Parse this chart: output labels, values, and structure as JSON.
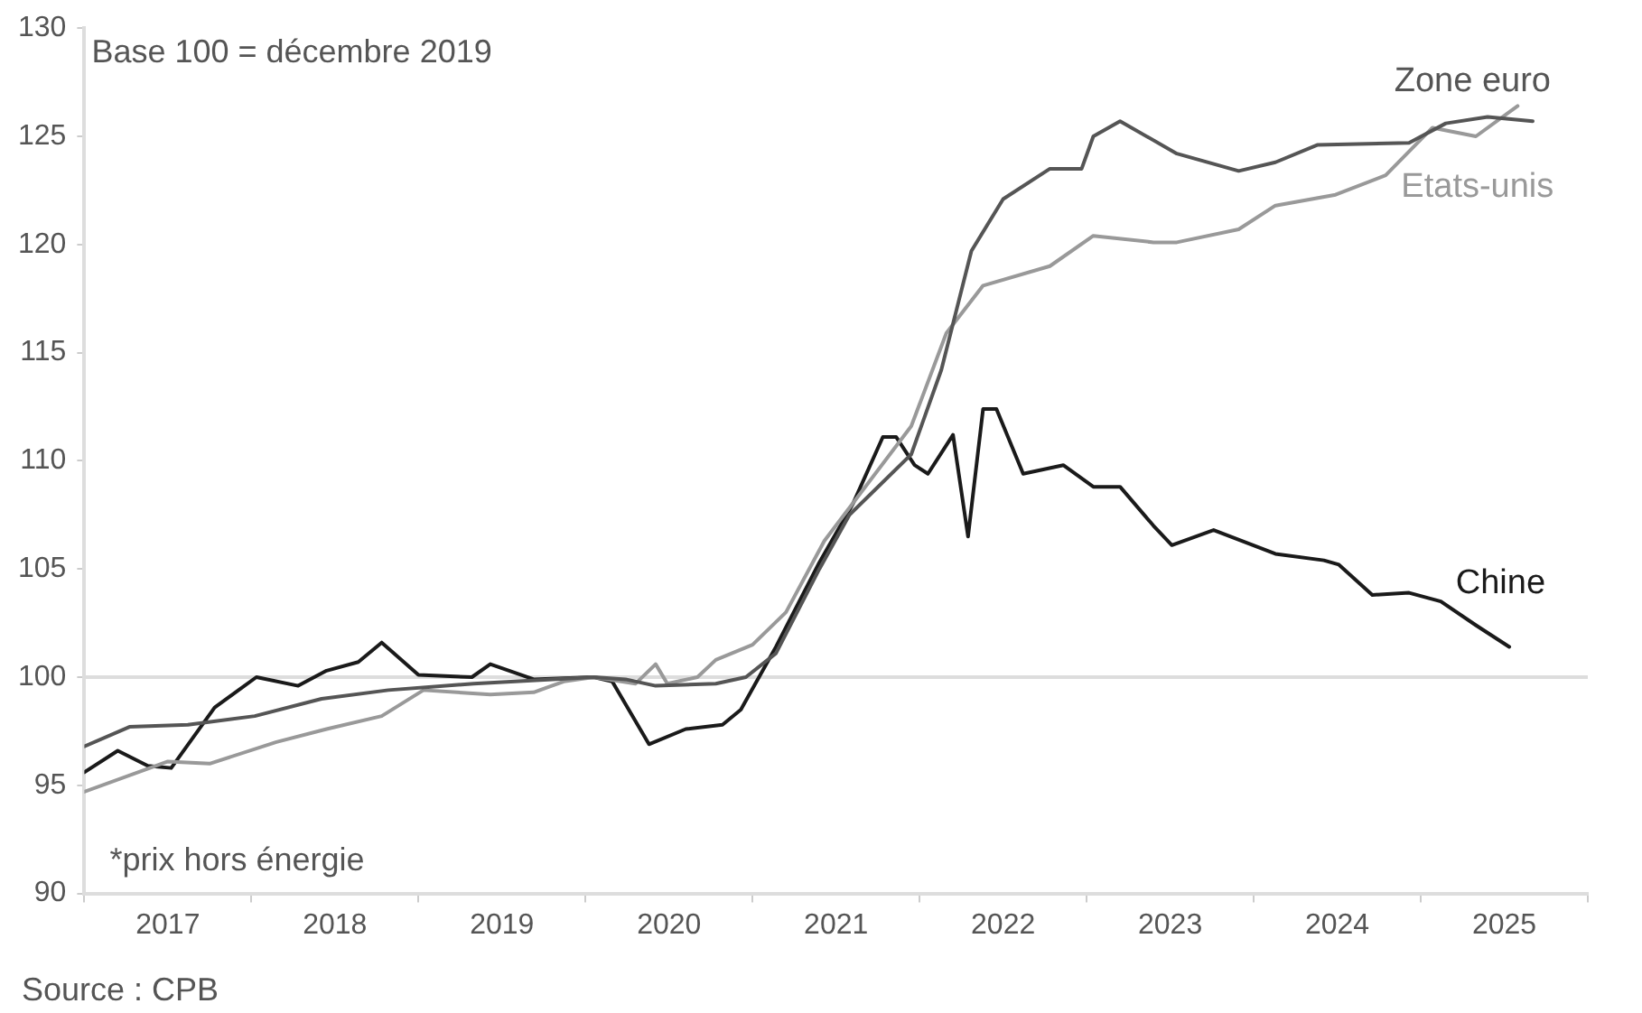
{
  "chart_data": {
    "type": "line",
    "annotations": [
      "Base 100 = décembre 2019",
      "*prix hors énergie",
      "Source : CPB"
    ],
    "series": [
      {
        "name": "Zone euro",
        "color": "#555555",
        "x": [
          2017.0,
          2017.27,
          2017.62,
          2018.02,
          2018.42,
          2018.82,
          2019.33,
          2020.05,
          2020.24,
          2020.42,
          2020.78,
          2020.96,
          2021.14,
          2021.4,
          2021.58,
          2021.95,
          2022.13,
          2022.31,
          2022.5,
          2022.78,
          2022.97,
          2023.04,
          2023.2,
          2023.54,
          2023.91,
          2024.13,
          2024.38,
          2024.93,
          2025.15,
          2025.4,
          2025.67
        ],
        "values": [
          96.8,
          97.7,
          97.8,
          98.2,
          99.0,
          99.4,
          99.7,
          100.0,
          99.9,
          99.6,
          99.7,
          100.0,
          101.1,
          105.0,
          107.5,
          110.3,
          114.2,
          119.7,
          122.1,
          123.5,
          123.5,
          125.0,
          125.7,
          124.2,
          123.4,
          123.8,
          124.6,
          124.7,
          125.6,
          125.9,
          125.7
        ]
      },
      {
        "name": "Etats-unis",
        "color": "#999999",
        "x": [
          2017.0,
          2017.5,
          2017.75,
          2018.15,
          2018.45,
          2018.78,
          2019.03,
          2019.43,
          2019.69,
          2019.87,
          2020.05,
          2020.3,
          2020.42,
          2020.49,
          2020.67,
          2020.78,
          2021.0,
          2021.2,
          2021.43,
          2021.95,
          2022.16,
          2022.38,
          2022.78,
          2023.04,
          2023.4,
          2023.54,
          2023.91,
          2024.13,
          2024.49,
          2024.79,
          2025.07,
          2025.33,
          2025.58
        ],
        "values": [
          94.7,
          96.1,
          96.0,
          97.0,
          97.6,
          98.2,
          99.4,
          99.2,
          99.3,
          99.8,
          100.0,
          99.7,
          100.6,
          99.7,
          100.0,
          100.8,
          101.5,
          103.0,
          106.3,
          111.6,
          115.9,
          118.1,
          119.0,
          120.4,
          120.1,
          120.1,
          120.7,
          121.8,
          122.3,
          123.2,
          125.4,
          125.0,
          126.4
        ]
      },
      {
        "name": "Chine",
        "color": "#1a1a1a",
        "x": [
          2017.0,
          2017.2,
          2017.38,
          2017.52,
          2017.78,
          2018.03,
          2018.28,
          2018.45,
          2018.64,
          2018.78,
          2019.0,
          2019.32,
          2019.43,
          2019.69,
          2020.05,
          2020.16,
          2020.38,
          2020.6,
          2020.82,
          2020.93,
          2021.14,
          2021.4,
          2021.6,
          2021.78,
          2021.86,
          2021.97,
          2022.05,
          2022.2,
          2022.29,
          2022.38,
          2022.46,
          2022.62,
          2022.86,
          2023.04,
          2023.2,
          2023.4,
          2023.51,
          2023.76,
          2024.13,
          2024.42,
          2024.51,
          2024.71,
          2024.93,
          2025.12,
          2025.33,
          2025.53
        ],
        "values": [
          95.6,
          96.6,
          95.9,
          95.8,
          98.6,
          100.0,
          99.6,
          100.3,
          100.7,
          101.6,
          100.1,
          100.0,
          100.6,
          99.9,
          100.0,
          99.8,
          96.9,
          97.6,
          97.8,
          98.5,
          101.4,
          105.3,
          108.0,
          111.1,
          111.1,
          109.8,
          109.4,
          111.2,
          106.5,
          112.4,
          112.4,
          109.4,
          109.8,
          108.8,
          108.8,
          107.0,
          106.1,
          106.8,
          105.7,
          105.4,
          105.2,
          103.8,
          103.9,
          103.5,
          102.4,
          101.4
        ]
      }
    ],
    "xlim": [
      2017,
      2026
    ],
    "xticks": [
      {
        "value": 2017,
        "label": null
      },
      {
        "value": 2017.5,
        "label": "2017"
      },
      {
        "value": 2018,
        "label": null
      },
      {
        "value": 2018.5,
        "label": "2018"
      },
      {
        "value": 2019,
        "label": null
      },
      {
        "value": 2019.5,
        "label": "2019"
      },
      {
        "value": 2020,
        "label": null
      },
      {
        "value": 2020.5,
        "label": "2020"
      },
      {
        "value": 2021,
        "label": null
      },
      {
        "value": 2021.5,
        "label": "2021"
      },
      {
        "value": 2022,
        "label": null
      },
      {
        "value": 2022.5,
        "label": "2022"
      },
      {
        "value": 2023,
        "label": null
      },
      {
        "value": 2023.5,
        "label": "2023"
      },
      {
        "value": 2024,
        "label": null
      },
      {
        "value": 2024.5,
        "label": "2024"
      },
      {
        "value": 2025,
        "label": null
      },
      {
        "value": 2025.5,
        "label": "2025"
      },
      {
        "value": 2026,
        "label": null
      }
    ],
    "ylim": [
      90,
      130
    ],
    "yticks": [
      90,
      95,
      100,
      105,
      110,
      115,
      120,
      125,
      130
    ],
    "ref_lines": [
      {
        "axis": "y",
        "value": 100,
        "color": "#dddddd"
      }
    ],
    "grid": false,
    "legend": false,
    "marker": "none",
    "line_style": "solid"
  }
}
